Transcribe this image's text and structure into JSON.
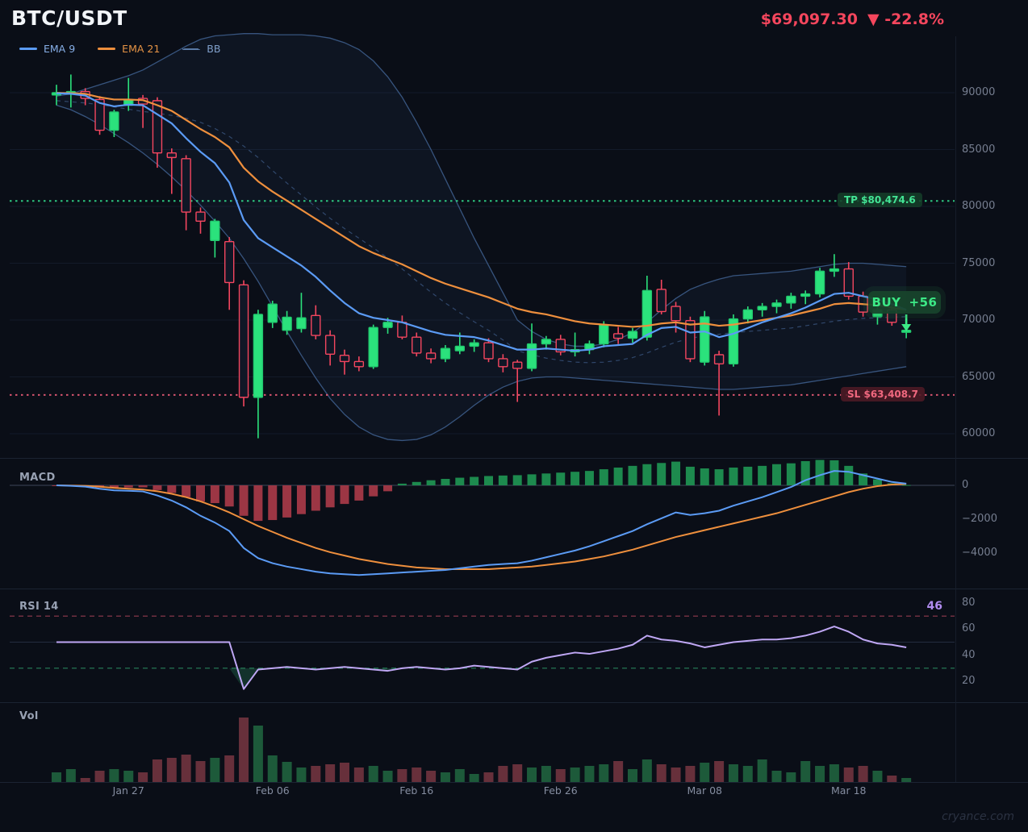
{
  "header": {
    "symbol": "BTC/USDT",
    "price": "$69,097.30",
    "change": "▼ -22.8%"
  },
  "legend": [
    {
      "label": "EMA 9",
      "color": "#5b9bf5",
      "text_color": "#86aee6",
      "style": "solid"
    },
    {
      "label": "EMA 21",
      "color": "#ee8f3d",
      "text_color": "#e59345",
      "style": "solid"
    },
    {
      "label": "BB",
      "color": "#5a7aa6",
      "text_color": "#7f9fca",
      "style": "dashed"
    }
  ],
  "panels": {
    "macd_label": "MACD",
    "rsi_label": "RSI 14",
    "vol_label": "Vol"
  },
  "annotations": {
    "tp": {
      "text": "TP $80,474.6",
      "price": 80474.6
    },
    "sl": {
      "text": "SL $63,408.7",
      "price": 63408.7
    },
    "buy": {
      "label": "BUY",
      "value": "+56",
      "index": 59
    }
  },
  "watermark": "cryance.com",
  "colors": {
    "up": "#2be27c",
    "up_border": "#22c96e",
    "down": "#f4465f",
    "down_fill": "#101726",
    "ema9": "#5b9bf5",
    "ema21": "#ee8f3d",
    "bb_line": "#3f608f",
    "bb_mid": "#48699c",
    "bb_fill": "rgba(70,115,185,0.07)",
    "tp": "#2fd387",
    "sl": "#e15873",
    "buy": "#3ce986",
    "macd_line": "#5b9bf5",
    "macd_signal": "#ee8f3d",
    "macd_pos": "#1d8a4e",
    "macd_neg": "#9c3644",
    "rsi": "#bfa7f4",
    "rsi_over": "#b4475c",
    "rsi_under": "#2f9e6c",
    "rsi_fill": "rgba(47,158,108,0.25)",
    "vol_up": "#1d5a3a",
    "vol_down": "#67303b",
    "grid": "#131a29",
    "separator": "#1b2332",
    "zero_line": "#3e4658",
    "rsi_mid": "#242c3f"
  },
  "chart_data": {
    "type": "candlestick",
    "title": "BTC/USDT daily candles with EMA 9, EMA 21, Bollinger Bands, MACD, RSI 14 and Volume",
    "price_axis": {
      "min": 60000,
      "max": 90000,
      "ticks": [
        90000,
        85000,
        80000,
        75000,
        70000,
        65000,
        60000
      ]
    },
    "time_ticks": [
      {
        "label": "Jan 27",
        "index": 5
      },
      {
        "label": "Feb 06",
        "index": 15
      },
      {
        "label": "Feb 16",
        "index": 25
      },
      {
        "label": "Feb 26",
        "index": 35
      },
      {
        "label": "Mar 08",
        "index": 45
      },
      {
        "label": "Mar 18",
        "index": 55
      }
    ],
    "candles": [
      [
        89800,
        90700,
        88900,
        90000
      ],
      [
        89900,
        91600,
        88700,
        90100
      ],
      [
        90100,
        90400,
        88900,
        89500
      ],
      [
        89400,
        89700,
        86300,
        86700
      ],
      [
        86700,
        88500,
        86100,
        88300
      ],
      [
        88900,
        91300,
        88400,
        89400
      ],
      [
        89500,
        89800,
        86900,
        89000
      ],
      [
        89300,
        89600,
        83400,
        84700
      ],
      [
        84700,
        85100,
        81100,
        84300
      ],
      [
        84200,
        84500,
        77900,
        79500
      ],
      [
        79500,
        79900,
        77600,
        78700
      ],
      [
        77000,
        78900,
        75500,
        78700
      ],
      [
        76900,
        77300,
        70900,
        73300
      ],
      [
        73100,
        73500,
        62400,
        63200
      ],
      [
        63200,
        70900,
        59600,
        70500
      ],
      [
        69800,
        71700,
        69300,
        71400
      ],
      [
        69100,
        70800,
        68700,
        70250
      ],
      [
        69250,
        72400,
        68900,
        70200
      ],
      [
        70400,
        71300,
        68300,
        68650
      ],
      [
        68650,
        69100,
        66000,
        67000
      ],
      [
        66900,
        67400,
        65200,
        66350
      ],
      [
        66350,
        66800,
        65500,
        65900
      ],
      [
        65900,
        69600,
        65700,
        69350
      ],
      [
        69350,
        70200,
        68800,
        69800
      ],
      [
        69800,
        70400,
        68300,
        68500
      ],
      [
        68500,
        68900,
        66800,
        67100
      ],
      [
        67100,
        67500,
        66200,
        66600
      ],
      [
        66600,
        67800,
        66300,
        67500
      ],
      [
        67300,
        68900,
        67000,
        67700
      ],
      [
        67700,
        68300,
        67200,
        68000
      ],
      [
        68000,
        68400,
        66300,
        66600
      ],
      [
        66600,
        67000,
        65400,
        65900
      ],
      [
        66300,
        66500,
        62800,
        65750
      ],
      [
        65750,
        69700,
        65500,
        67900
      ],
      [
        67900,
        68600,
        67400,
        68300
      ],
      [
        68300,
        68700,
        66900,
        67200
      ],
      [
        67200,
        68900,
        66800,
        67400
      ],
      [
        67400,
        68200,
        67000,
        67900
      ],
      [
        67900,
        69900,
        67600,
        69600
      ],
      [
        68800,
        69400,
        67900,
        68400
      ],
      [
        68400,
        69300,
        68000,
        69000
      ],
      [
        68500,
        73900,
        68200,
        72600
      ],
      [
        72700,
        73550,
        70500,
        70750
      ],
      [
        71200,
        71600,
        68900,
        69950
      ],
      [
        69950,
        70300,
        66300,
        66600
      ],
      [
        66300,
        70800,
        66000,
        70280
      ],
      [
        66950,
        67300,
        61600,
        66150
      ],
      [
        66150,
        70500,
        65900,
        70100
      ],
      [
        70100,
        71200,
        69700,
        70900
      ],
      [
        70900,
        71500,
        70300,
        71200
      ],
      [
        71200,
        71800,
        70600,
        71500
      ],
      [
        71500,
        72400,
        71000,
        72100
      ],
      [
        72100,
        72600,
        71400,
        72300
      ],
      [
        72300,
        74600,
        72000,
        74300
      ],
      [
        74300,
        75800,
        73800,
        74500
      ],
      [
        74500,
        75100,
        71800,
        72100
      ],
      [
        72100,
        72500,
        70300,
        70700
      ],
      [
        70300,
        71200,
        69600,
        70900
      ],
      [
        70900,
        71300,
        69500,
        69800
      ],
      [
        69050,
        69400,
        68400,
        69100
      ]
    ],
    "overlays": {
      "ema9": [
        89950,
        89900,
        89750,
        89100,
        88800,
        88950,
        88900,
        88100,
        87300,
        86000,
        84800,
        83800,
        82100,
        78800,
        77200,
        76400,
        75600,
        74800,
        73800,
        72600,
        71500,
        70600,
        70200,
        70000,
        69800,
        69400,
        69000,
        68700,
        68600,
        68500,
        68200,
        67800,
        67400,
        67400,
        67500,
        67400,
        67300,
        67400,
        67700,
        67800,
        67900,
        68700,
        69300,
        69400,
        68900,
        69000,
        68500,
        68800,
        69300,
        69800,
        70200,
        70600,
        71100,
        71700,
        72300,
        72400,
        72100,
        71800,
        71400,
        70900
      ],
      "ema21": [
        89980,
        89960,
        89900,
        89600,
        89400,
        89400,
        89350,
        88900,
        88400,
        87600,
        86800,
        86100,
        85200,
        83400,
        82200,
        81300,
        80500,
        79700,
        78900,
        78100,
        77300,
        76500,
        75900,
        75400,
        74900,
        74300,
        73700,
        73200,
        72800,
        72400,
        72000,
        71500,
        71000,
        70700,
        70500,
        70200,
        69900,
        69700,
        69600,
        69500,
        69400,
        69500,
        69700,
        69800,
        69600,
        69700,
        69500,
        69600,
        69800,
        70000,
        70200,
        70400,
        70700,
        71000,
        71400,
        71500,
        71400,
        71300,
        71100,
        70900
      ],
      "bb_upper": [
        89700,
        89900,
        90300,
        90700,
        91100,
        91500,
        92000,
        92700,
        93400,
        94100,
        94700,
        95000,
        95100,
        95200,
        95200,
        95100,
        95100,
        95100,
        95000,
        94800,
        94400,
        93800,
        92800,
        91400,
        89600,
        87400,
        85000,
        82400,
        79800,
        77200,
        74800,
        72400,
        70000,
        69000,
        68300,
        67900,
        67700,
        67700,
        67900,
        68300,
        68900,
        69800,
        70900,
        71900,
        72700,
        73200,
        73600,
        73900,
        74000,
        74100,
        74200,
        74300,
        74500,
        74700,
        74900,
        75000,
        75000,
        74900,
        74800,
        74700
      ],
      "bb_mid": [
        89300,
        89200,
        89100,
        88950,
        88750,
        88550,
        88350,
        88200,
        88000,
        87750,
        87400,
        86850,
        86150,
        85300,
        84300,
        83150,
        82050,
        81000,
        79950,
        78950,
        78050,
        77200,
        76350,
        75450,
        74500,
        73450,
        72450,
        71500,
        70650,
        69850,
        69100,
        68250,
        67300,
        66950,
        66650,
        66450,
        66300,
        66250,
        66300,
        66450,
        66700,
        67100,
        67600,
        68050,
        68400,
        68600,
        68750,
        68900,
        69000,
        69100,
        69200,
        69300,
        69500,
        69700,
        69900,
        70050,
        70150,
        70200,
        70250,
        70300
      ],
      "bb_lower": [
        88900,
        88500,
        87900,
        87200,
        86400,
        85600,
        84700,
        83700,
        82600,
        81400,
        80100,
        78700,
        77200,
        75400,
        73400,
        71200,
        69000,
        66900,
        64900,
        63100,
        61700,
        60600,
        59900,
        59500,
        59400,
        59500,
        59900,
        60600,
        61500,
        62500,
        63400,
        64100,
        64600,
        64900,
        65000,
        65000,
        64900,
        64800,
        64700,
        64600,
        64500,
        64400,
        64300,
        64200,
        64100,
        64000,
        63900,
        63900,
        64000,
        64100,
        64200,
        64300,
        64500,
        64700,
        64900,
        65100,
        65300,
        65500,
        65700,
        65900
      ]
    },
    "macd": {
      "axis_ticks": [
        0,
        -2000,
        -4000
      ],
      "line": [
        0,
        -30,
        -80,
        -200,
        -300,
        -320,
        -360,
        -600,
        -900,
        -1300,
        -1800,
        -2200,
        -2700,
        -3700,
        -4300,
        -4600,
        -4800,
        -4950,
        -5100,
        -5200,
        -5250,
        -5300,
        -5250,
        -5200,
        -5150,
        -5100,
        -5050,
        -5000,
        -4900,
        -4800,
        -4700,
        -4650,
        -4600,
        -4450,
        -4250,
        -4050,
        -3850,
        -3600,
        -3300,
        -3000,
        -2700,
        -2300,
        -1950,
        -1600,
        -1750,
        -1650,
        -1500,
        -1200,
        -950,
        -700,
        -400,
        -100,
        300,
        600,
        850,
        800,
        600,
        400,
        200,
        100
      ],
      "signal": [
        0,
        -10,
        -30,
        -80,
        -150,
        -200,
        -250,
        -350,
        -500,
        -700,
        -950,
        -1250,
        -1600,
        -2000,
        -2400,
        -2750,
        -3100,
        -3400,
        -3700,
        -3950,
        -4150,
        -4350,
        -4500,
        -4650,
        -4750,
        -4850,
        -4900,
        -4950,
        -4950,
        -4950,
        -4950,
        -4900,
        -4850,
        -4800,
        -4700,
        -4600,
        -4500,
        -4350,
        -4200,
        -4000,
        -3800,
        -3550,
        -3300,
        -3050,
        -2850,
        -2650,
        -2450,
        -2250,
        -2050,
        -1850,
        -1650,
        -1400,
        -1150,
        -900,
        -650,
        -400,
        -200,
        -50,
        50,
        80
      ],
      "histogram": [
        -10,
        -30,
        -60,
        -130,
        -160,
        -130,
        -120,
        -280,
        -450,
        -700,
        -950,
        -1050,
        -1250,
        -1800,
        -2100,
        -2050,
        -1900,
        -1700,
        -1500,
        -1300,
        -1100,
        -900,
        -650,
        -350,
        100,
        200,
        300,
        380,
        450,
        500,
        550,
        580,
        600,
        650,
        700,
        750,
        800,
        850,
        950,
        1050,
        1150,
        1250,
        1320,
        1400,
        1100,
        1000,
        950,
        1050,
        1100,
        1150,
        1250,
        1300,
        1430,
        1500,
        1480,
        1150,
        700,
        350,
        120,
        20
      ]
    },
    "rsi": {
      "period": 14,
      "current": "46",
      "overbought": 70,
      "oversold": 30,
      "axis_ticks": [
        80,
        60,
        40,
        20
      ],
      "values": [
        50,
        50,
        50,
        50,
        50,
        50,
        50,
        50,
        50,
        50,
        50,
        50,
        50,
        14,
        29,
        30,
        31,
        30,
        29,
        30,
        31,
        30,
        29,
        28,
        30,
        31,
        30,
        29,
        30,
        32,
        31,
        30,
        29,
        35,
        38,
        40,
        42,
        41,
        43,
        45,
        48,
        55,
        52,
        51,
        49,
        46,
        48,
        50,
        51,
        52,
        52,
        53,
        55,
        58,
        62,
        58,
        52,
        49,
        48,
        46
      ]
    },
    "volume": [
      12,
      16,
      5,
      14,
      16,
      14,
      12,
      28,
      30,
      34,
      26,
      30,
      33,
      80,
      70,
      33,
      25,
      18,
      20,
      22,
      24,
      18,
      20,
      14,
      16,
      18,
      14,
      12,
      16,
      10,
      12,
      20,
      22,
      18,
      20,
      16,
      18,
      20,
      22,
      26,
      16,
      28,
      22,
      18,
      20,
      24,
      26,
      22,
      20,
      28,
      14,
      12,
      26,
      20,
      22,
      18,
      20,
      14,
      8,
      5
    ]
  }
}
